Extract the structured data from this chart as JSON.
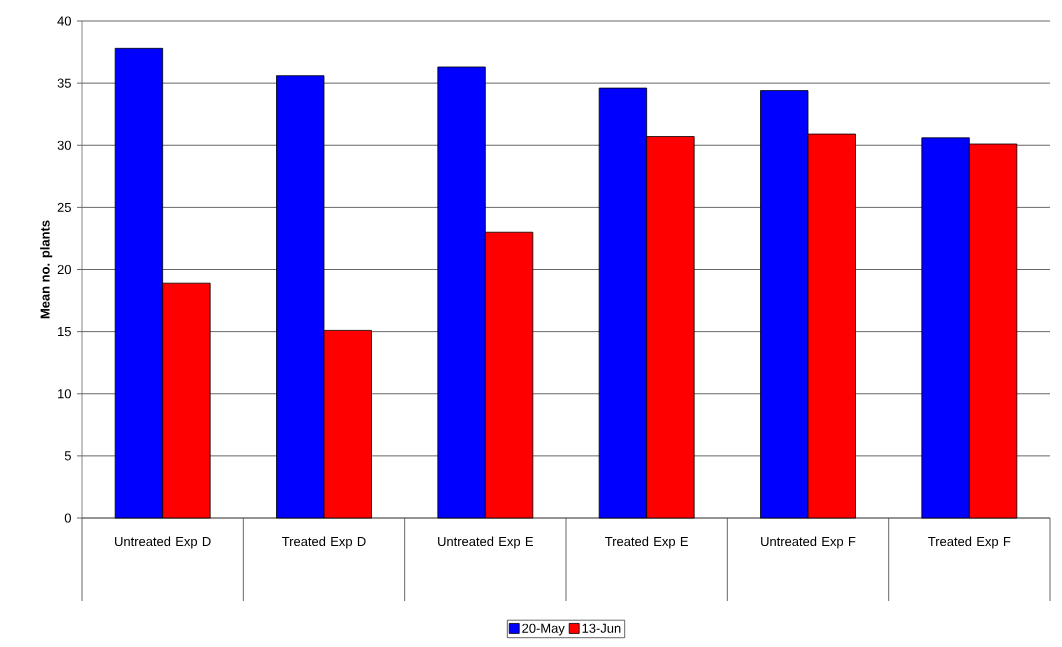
{
  "chart_data": {
    "type": "bar",
    "ylabel": "Mean no. plants",
    "categories": [
      "Untreated Exp D",
      "Treated Exp D",
      "Untreated Exp E",
      "Treated Exp E",
      "Untreated Exp F",
      "Treated Exp F"
    ],
    "series": [
      {
        "name": "20-May",
        "color": "#0000ff",
        "values": [
          37.8,
          35.6,
          36.3,
          34.6,
          34.4,
          30.6
        ]
      },
      {
        "name": "13-Jun",
        "color": "#ff0000",
        "values": [
          18.9,
          15.1,
          23.0,
          30.7,
          30.9,
          30.1
        ]
      }
    ],
    "ylim": [
      0,
      40
    ],
    "yticks": [
      0,
      5,
      10,
      15,
      20,
      25,
      30,
      35,
      40
    ],
    "grid": "y",
    "legend": "bottom"
  }
}
